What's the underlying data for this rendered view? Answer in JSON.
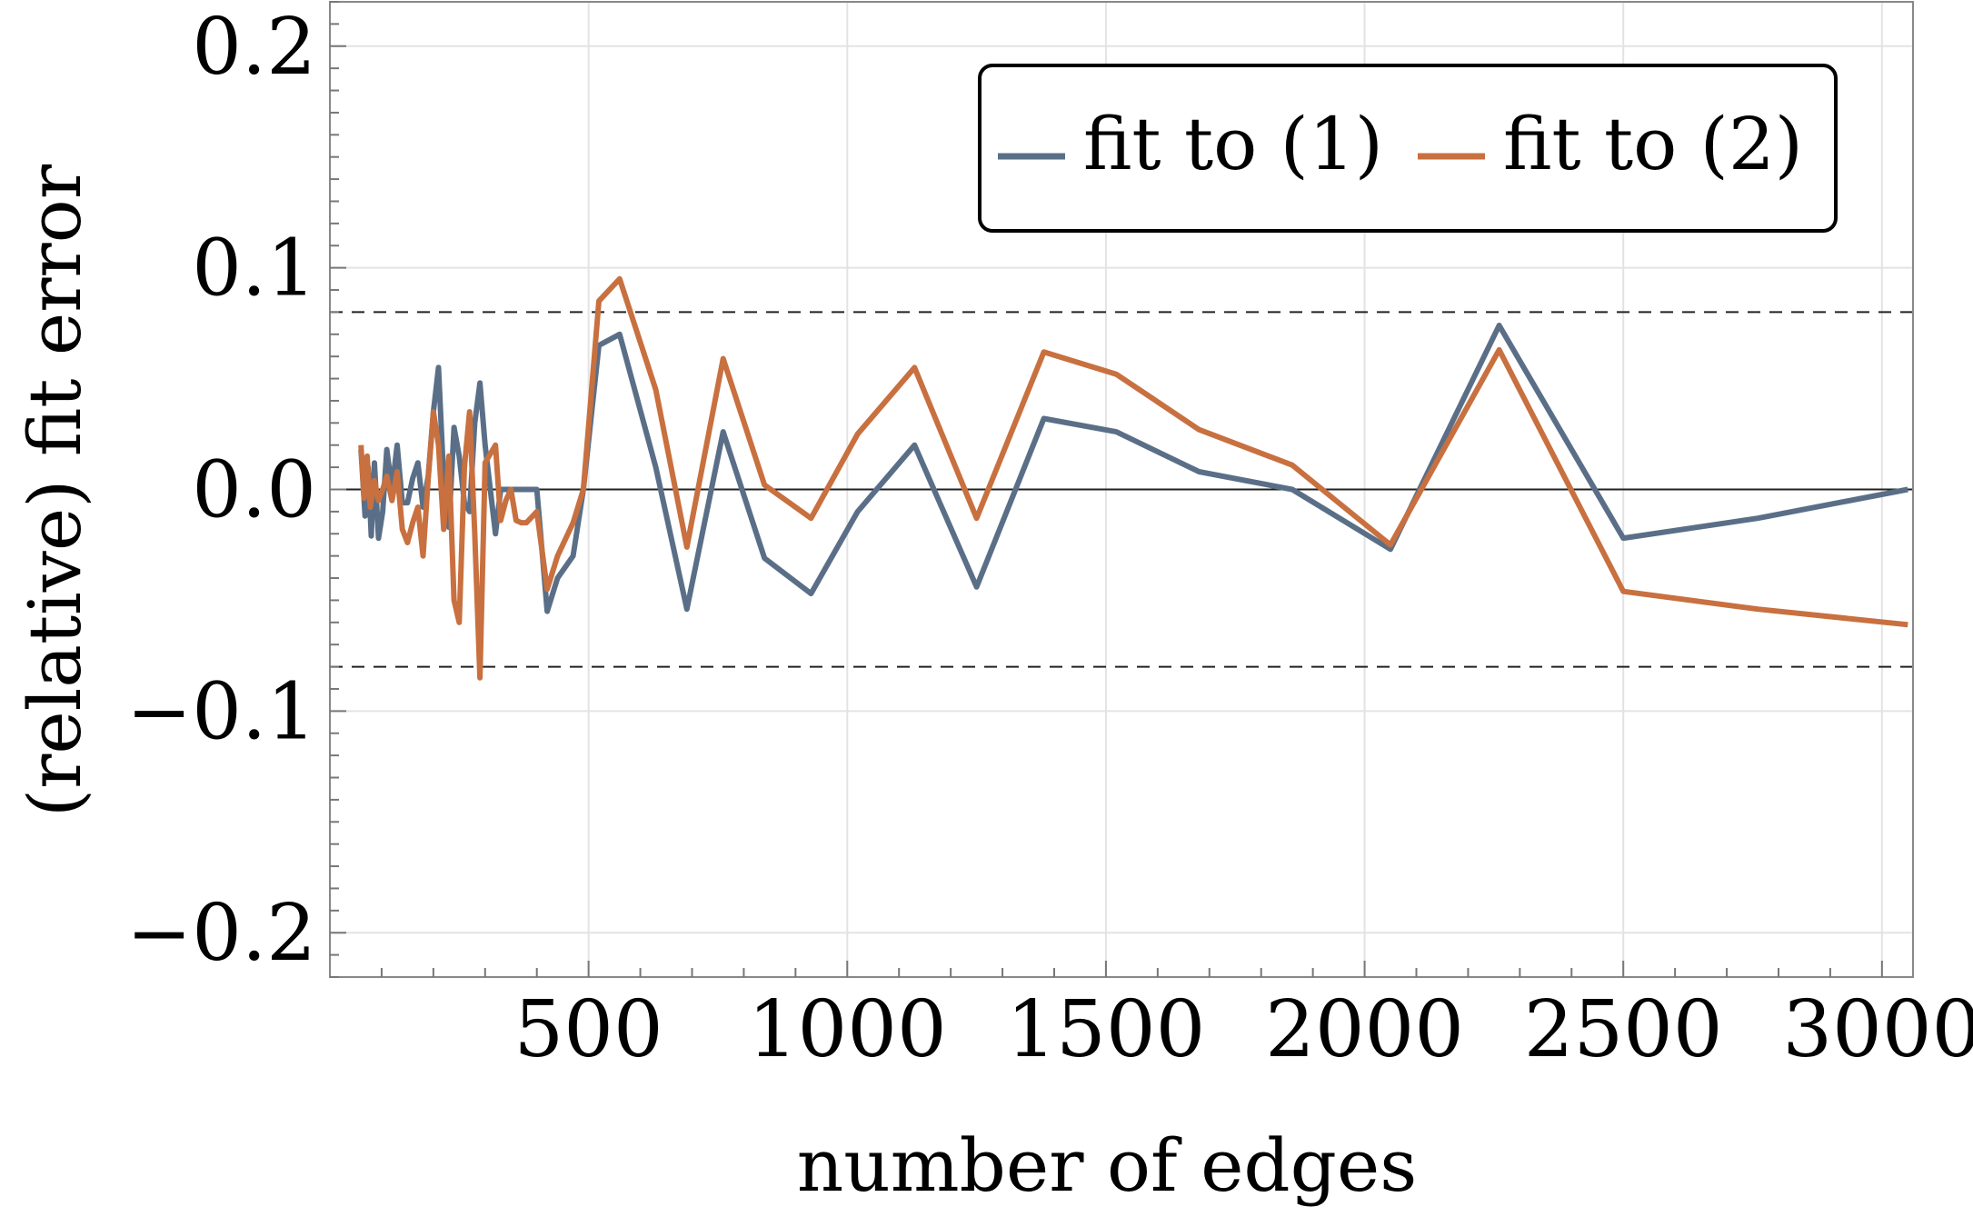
{
  "chart_data": {
    "type": "line",
    "title": "",
    "xlabel": "number of edges",
    "ylabel": "(relative) fit error",
    "xlim": [
      0,
      3060
    ],
    "ylim": [
      -0.22,
      0.22
    ],
    "x_ticks": [
      500,
      1000,
      1500,
      2000,
      2500,
      3000
    ],
    "x_tick_labels": [
      "500",
      "1000",
      "1500",
      "2000",
      "2500",
      "3000"
    ],
    "y_ticks": [
      0.2,
      0.1,
      0.0,
      -0.1,
      -0.2
    ],
    "y_tick_labels": [
      "0.2",
      "0.1",
      "0.0",
      "−0.1",
      "−0.2"
    ],
    "grid": true,
    "legend_position": "top-right",
    "reference_lines": [
      {
        "y": 0.08,
        "style": "dashed"
      },
      {
        "y": -0.08,
        "style": "dashed"
      },
      {
        "y": 0.0,
        "style": "solid"
      }
    ],
    "series": [
      {
        "name": "fit to (1)",
        "color": "#5a6f87",
        "x": [
          60,
          68,
          74,
          80,
          86,
          94,
          102,
          110,
          120,
          130,
          140,
          150,
          160,
          170,
          180,
          190,
          200,
          210,
          220,
          230,
          240,
          250,
          260,
          270,
          280,
          290,
          300,
          310,
          320,
          330,
          340,
          350,
          360,
          370,
          380,
          400,
          420,
          440,
          470,
          490,
          520,
          560,
          630,
          690,
          760,
          840,
          930,
          1020,
          1130,
          1250,
          1380,
          1520,
          1680,
          1860,
          2050,
          2260,
          2500,
          2760,
          3050
        ],
        "y": [
          0.018,
          -0.012,
          0.01,
          -0.021,
          0.012,
          -0.022,
          -0.01,
          0.018,
          0.0,
          0.02,
          -0.006,
          -0.006,
          0.005,
          0.012,
          -0.008,
          0.006,
          0.035,
          0.055,
          0.005,
          -0.017,
          0.028,
          0.015,
          -0.006,
          -0.01,
          0.03,
          0.048,
          0.02,
          0.0,
          -0.02,
          0.0,
          0.0,
          0.0,
          0.0,
          0.0,
          0.0,
          0.0,
          -0.055,
          -0.04,
          -0.03,
          0.0,
          0.065,
          0.07,
          0.01,
          -0.054,
          0.026,
          -0.031,
          -0.047,
          -0.01,
          0.02,
          -0.044,
          0.032,
          0.026,
          0.008,
          0.0,
          -0.027,
          0.074,
          -0.022,
          -0.013,
          0.0
        ]
      },
      {
        "name": "fit to (2)",
        "color": "#c8703f",
        "x": [
          60,
          66,
          72,
          78,
          86,
          94,
          102,
          110,
          120,
          130,
          140,
          150,
          160,
          170,
          180,
          190,
          200,
          210,
          220,
          230,
          240,
          250,
          260,
          270,
          280,
          290,
          300,
          310,
          320,
          330,
          340,
          350,
          360,
          370,
          380,
          400,
          420,
          440,
          470,
          490,
          520,
          560,
          630,
          690,
          760,
          840,
          930,
          1020,
          1130,
          1250,
          1380,
          1520,
          1680,
          1860,
          2050,
          2260,
          2500,
          2760,
          3050
        ],
        "y": [
          0.02,
          -0.004,
          0.015,
          -0.008,
          0.004,
          -0.005,
          0.0,
          0.006,
          -0.005,
          0.008,
          -0.018,
          -0.024,
          -0.015,
          -0.008,
          -0.03,
          0.005,
          0.035,
          0.02,
          -0.018,
          0.015,
          -0.05,
          -0.06,
          0.01,
          0.035,
          -0.02,
          -0.085,
          0.012,
          0.016,
          0.02,
          -0.014,
          -0.005,
          0.0,
          -0.014,
          -0.015,
          -0.015,
          -0.01,
          -0.045,
          -0.03,
          -0.015,
          0.0,
          0.085,
          0.095,
          0.045,
          -0.026,
          0.059,
          0.002,
          -0.013,
          0.025,
          0.055,
          -0.013,
          0.062,
          0.052,
          0.027,
          0.011,
          -0.025,
          0.063,
          -0.046,
          -0.054,
          -0.061
        ]
      }
    ]
  }
}
